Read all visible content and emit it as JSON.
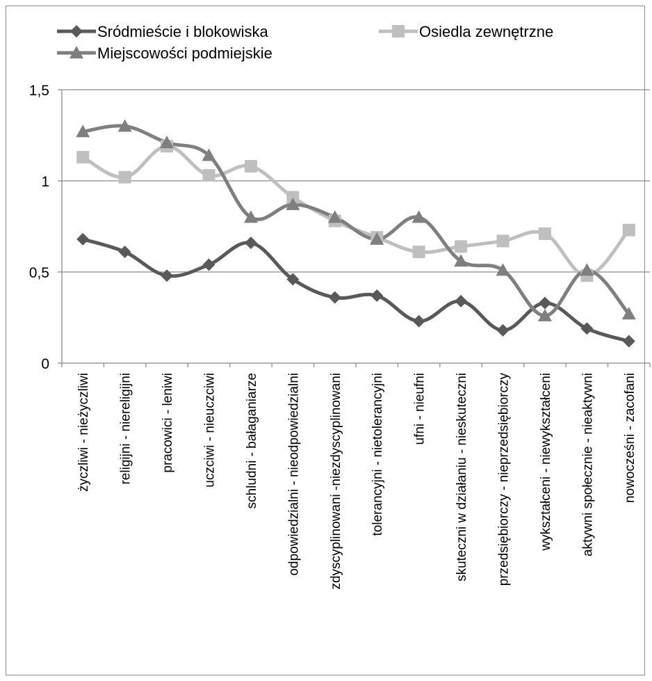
{
  "chart_data": {
    "type": "line",
    "categories": [
      "życzliwi - nieżyczliwi",
      "religijni - niereligijni",
      "pracowici - leniwi",
      "uczciwi - nieuczciwi",
      "schludni - bałaganiarze",
      "odpowiedzialni - nieodpowiedzialni",
      "zdyscyplinowani -niezdyscyplinowani",
      "tolerancyjni - nietolerancyjni",
      "ufni - nieufni",
      "skuteczni w działaniu - nieskuteczni",
      "przedsiębiorczy - nieprzedsiębiorczy",
      "wykształceni - niewykształceni",
      "aktywni społecznie - nieaktywni",
      "nowocześni - zacofani"
    ],
    "series": [
      {
        "name": "Sródmieście i blokowiska",
        "color": "#595959",
        "marker": "diamond",
        "values": [
          0.68,
          0.61,
          0.48,
          0.54,
          0.66,
          0.46,
          0.36,
          0.37,
          0.23,
          0.34,
          0.18,
          0.33,
          0.19,
          0.12
        ]
      },
      {
        "name": "Osiedla zewnętrzne",
        "color": "#bfbfbf",
        "marker": "square",
        "values": [
          1.13,
          1.02,
          1.19,
          1.03,
          1.08,
          0.91,
          0.78,
          0.69,
          0.61,
          0.64,
          0.67,
          0.71,
          0.48,
          0.73
        ]
      },
      {
        "name": "Miejscowości podmiejskie",
        "color": "#7f7f7f",
        "marker": "triangle",
        "values": [
          1.27,
          1.3,
          1.21,
          1.14,
          0.8,
          0.87,
          0.8,
          0.68,
          0.8,
          0.56,
          0.51,
          0.26,
          0.51,
          0.27
        ]
      }
    ],
    "y_ticks": [
      "0",
      "0,5",
      "1",
      "1,5"
    ],
    "y_tick_values": [
      0,
      0.5,
      1,
      1.5
    ],
    "ylim": [
      0,
      1.5
    ],
    "grid": true,
    "legend_position": "top"
  }
}
